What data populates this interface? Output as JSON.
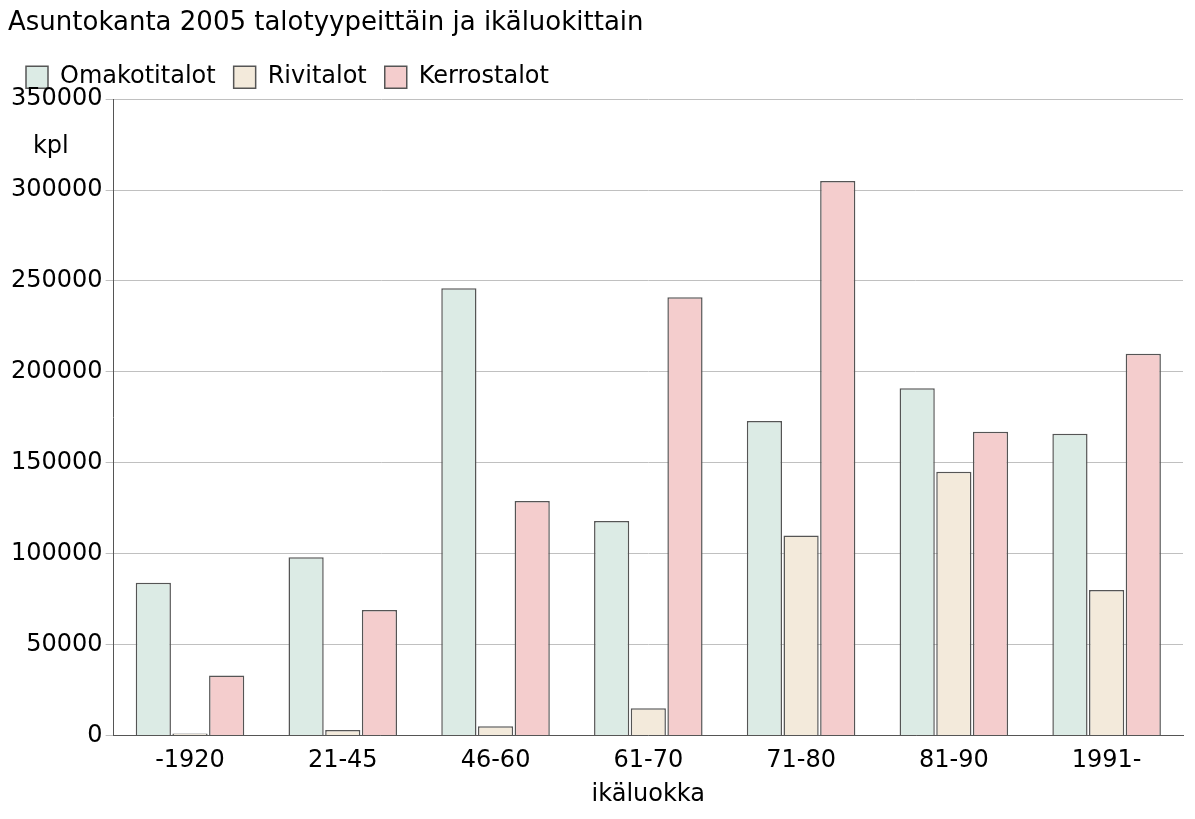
{
  "chart_data": {
    "type": "bar",
    "title": "Asuntokanta 2005 talotyypeittäin ja ikäluokittain",
    "y_label": "kpl",
    "x_label": "ikäluokka",
    "categories": [
      "-1920",
      "21-45",
      "46-60",
      "61-70",
      "71-80",
      "81-90",
      "1991-"
    ],
    "series": [
      {
        "name": "Omakotitalot",
        "color": "#dcebe5",
        "values": [
          84000,
          98000,
          246000,
          118000,
          173000,
          191000,
          166000
        ]
      },
      {
        "name": "Rivitalot",
        "color": "#f3eadb",
        "values": [
          1000,
          3000,
          5000,
          15000,
          110000,
          145000,
          80000
        ]
      },
      {
        "name": "Kerrostalot",
        "color": "#f4cdcd",
        "values": [
          33000,
          69000,
          129000,
          241000,
          305000,
          167000,
          210000
        ]
      }
    ],
    "ylim": [
      0,
      350000
    ],
    "yticks": [
      0,
      50000,
      100000,
      150000,
      200000,
      250000,
      300000,
      350000
    ],
    "grid": true,
    "legend": "top-left"
  }
}
